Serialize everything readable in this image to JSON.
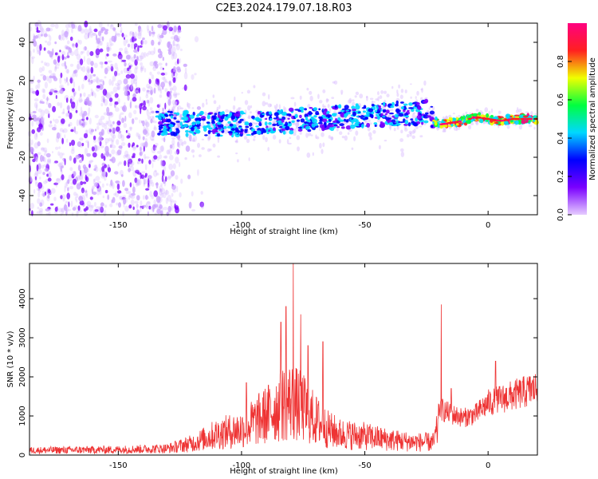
{
  "title": "C2E3.2024.179.07.18.R03",
  "chart_data": [
    {
      "type": "heatmap",
      "xlabel": "Height of straight line (km)",
      "ylabel": "Frequency (Hz)",
      "xlim": [
        -186,
        20
      ],
      "ylim": [
        -50,
        50
      ],
      "xticks": [
        -150,
        -100,
        -50,
        0
      ],
      "xtick_labels": [
        "-150",
        "-100",
        "-50",
        "0"
      ],
      "yticks": [
        40,
        20,
        0,
        -20,
        -40
      ],
      "ytick_labels": [
        "40",
        "20",
        "0",
        "-20",
        "-40"
      ],
      "colorbar": {
        "label": "Normalized spectral amplitude",
        "range": [
          0,
          1
        ],
        "ticks": [
          0.0,
          0.2,
          0.4,
          0.6,
          0.8
        ],
        "tick_labels": [
          "0.0",
          "0.2",
          "0.4",
          "0.6",
          "0.8"
        ],
        "colors": [
          "#e6ccff",
          "#7a00ff",
          "#0000ff",
          "#00d8ff",
          "#00ff40",
          "#f0ff00",
          "#ff2020",
          "#ff0080"
        ]
      },
      "ridge": {
        "x": [
          -130,
          -110,
          -90,
          -70,
          -50,
          -30,
          -25,
          -20,
          -15,
          -10,
          -5,
          0,
          5,
          10,
          20
        ],
        "y": [
          -2,
          -3,
          -2,
          0,
          2,
          3,
          4,
          -3,
          -2,
          -1,
          1,
          0,
          -1,
          0,
          0
        ]
      },
      "noise_region_x": [
        -186,
        -125
      ]
    },
    {
      "type": "line",
      "xlabel": "Height of straight line (km)",
      "ylabel": "SNR (10 * v/v)",
      "xlim": [
        -186,
        20
      ],
      "ylim": [
        0,
        4900
      ],
      "xticks": [
        -150,
        -100,
        -50,
        0
      ],
      "xtick_labels": [
        "-150",
        "-100",
        "-50",
        "0"
      ],
      "yticks": [
        0,
        1000,
        2000,
        3000,
        4000
      ],
      "ytick_labels": [
        "0",
        "1000",
        "2000",
        "3000",
        "4000"
      ],
      "color": "#ee3333",
      "envelope": {
        "x": [
          -186,
          -150,
          -130,
          -120,
          -110,
          -100,
          -90,
          -85,
          -80,
          -75,
          -70,
          -65,
          -60,
          -50,
          -40,
          -30,
          -22,
          -20,
          -18,
          -15,
          -10,
          -5,
          0,
          5,
          10,
          15,
          20
        ],
        "y": [
          200,
          230,
          280,
          500,
          900,
          1100,
          1700,
          2100,
          2300,
          2000,
          1500,
          1100,
          900,
          800,
          650,
          550,
          550,
          1300,
          1200,
          1100,
          1000,
          1100,
          1400,
          1500,
          1600,
          1700,
          1800
        ]
      },
      "peaks": [
        {
          "x": -98,
          "y": 1850
        },
        {
          "x": -84,
          "y": 3400
        },
        {
          "x": -82,
          "y": 3800
        },
        {
          "x": -79,
          "y": 4900
        },
        {
          "x": -76,
          "y": 3600
        },
        {
          "x": -73,
          "y": 2800
        },
        {
          "x": -67,
          "y": 2900
        },
        {
          "x": -19,
          "y": 3850
        },
        {
          "x": -15,
          "y": 1700
        },
        {
          "x": 3,
          "y": 2400
        },
        {
          "x": 17,
          "y": 2000
        }
      ]
    }
  ]
}
